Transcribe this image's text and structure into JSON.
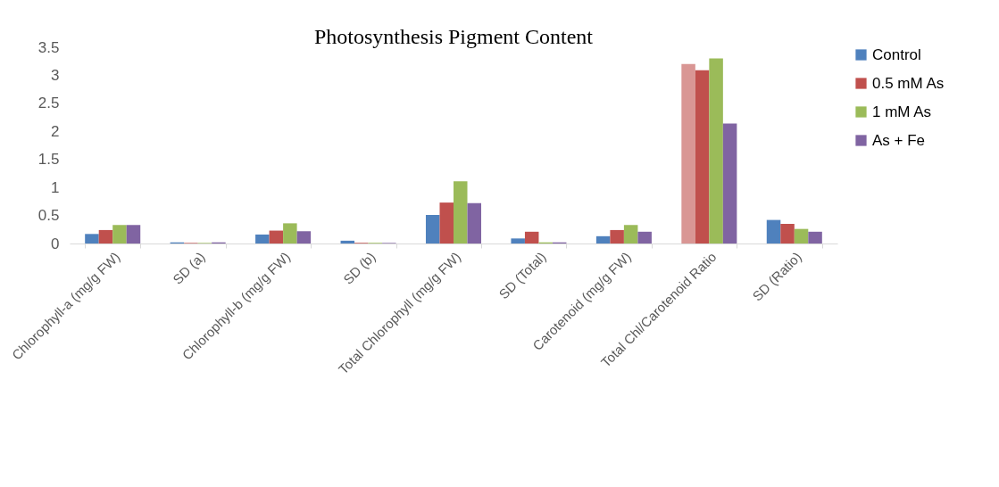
{
  "chart_data": {
    "type": "bar",
    "title": "Photosynthesis Pigment Content",
    "categories": [
      "Chlorophyll-a (mg/g FW)",
      "SD (a)",
      "Chlorophyll-b (mg/g FW)",
      "SD (b)",
      "Total Chlorophyll (mg/g FW)",
      "SD (Total)",
      "Carotenoid (mg/g FW)",
      "Total Chl/Carotenoid Ratio",
      "SD (Ratio)"
    ],
    "series": [
      {
        "name": "Control",
        "color": "#4f81bd",
        "colors": [
          "#4f81bd",
          "#4f81bd",
          "#4f81bd",
          "#4f81bd",
          "#4f81bd",
          "#4f81bd",
          "#4f81bd",
          "#d99694",
          "#4f81bd"
        ],
        "values": [
          0.17,
          0.02,
          0.16,
          0.05,
          0.51,
          0.09,
          0.13,
          3.2,
          0.42
        ]
      },
      {
        "name": "0.5 mM As",
        "color": "#c0504d",
        "values": [
          0.24,
          0.01,
          0.23,
          0.01,
          0.73,
          0.21,
          0.24,
          3.09,
          0.35
        ]
      },
      {
        "name": "1 mM As",
        "color": "#9bbb59",
        "values": [
          0.33,
          0.01,
          0.36,
          0.01,
          1.11,
          0.02,
          0.33,
          3.3,
          0.26
        ]
      },
      {
        "name": "As + Fe",
        "color": "#8064a2",
        "values": [
          0.33,
          0.02,
          0.22,
          0.01,
          0.72,
          0.02,
          0.21,
          2.14,
          0.21
        ]
      }
    ],
    "ylim": [
      0,
      3.5
    ],
    "yticks": [
      0,
      0.5,
      1,
      1.5,
      2,
      2.5,
      3,
      3.5
    ],
    "grid": false,
    "legend": "right"
  }
}
